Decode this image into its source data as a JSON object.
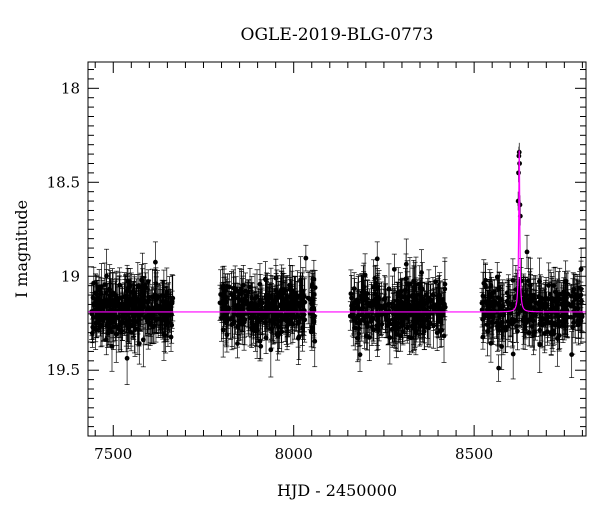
{
  "chart_data": {
    "type": "scatter",
    "title": "OGLE-2019-BLG-0773",
    "xlabel": "HJD - 2450000",
    "ylabel": "I magnitude",
    "xlim": [
      7430,
      8810
    ],
    "ylim": [
      19.85,
      17.86
    ],
    "y_inverted": true,
    "x_ticks": [
      7500,
      8000,
      8500
    ],
    "y_ticks": [
      18,
      18.5,
      19,
      19.5
    ],
    "grid": false,
    "legend": "none",
    "colors": {
      "data": "#000000",
      "model": "#ff00ff",
      "axes": "#000000"
    },
    "observing_seasons": [
      {
        "x_start": 7440,
        "x_end": 7665,
        "mag_mean": 19.18,
        "mag_spread": 0.12
      },
      {
        "x_start": 7795,
        "x_end": 8060,
        "mag_mean": 19.18,
        "mag_spread": 0.12
      },
      {
        "x_start": 8155,
        "x_end": 8420,
        "mag_mean": 19.18,
        "mag_spread": 0.12
      },
      {
        "x_start": 8520,
        "x_end": 8800,
        "mag_mean": 19.18,
        "mag_spread": 0.12
      }
    ],
    "typical_error": 0.1,
    "baseline_mag": 19.19,
    "peak": {
      "x": 8625,
      "mag": 18.33
    },
    "peak_points": [
      {
        "x": 8622,
        "y": 18.6
      },
      {
        "x": 8623,
        "y": 18.45
      },
      {
        "x": 8624,
        "y": 18.36
      },
      {
        "x": 8625,
        "y": 18.34
      },
      {
        "x": 8626,
        "y": 18.4
      },
      {
        "x": 8627,
        "y": 18.62
      },
      {
        "x": 8628,
        "y": 18.68
      }
    ]
  }
}
